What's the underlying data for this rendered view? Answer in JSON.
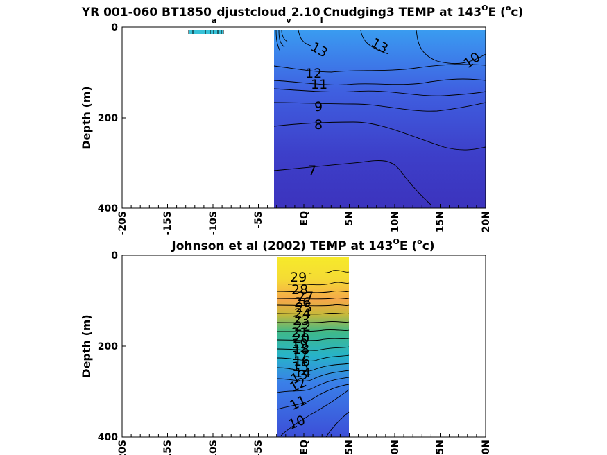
{
  "chart_data": [
    {
      "type": "heatmap",
      "title": {
        "p1": "YR 001-060 BT1850",
        "s1": "a",
        "p2": "djustcloud",
        "s2": "v",
        "p3": "2.10",
        "s3": "I",
        "p4": "Cnudging3 TEMP at 143",
        "sup1": "O",
        "p5": "E (",
        "sup2": "o",
        "p6": "c)"
      },
      "ylabel": "Depth (m)",
      "xlabel": "",
      "xlim": [
        -20,
        20
      ],
      "ylim": [
        0,
        400
      ],
      "y_reversed": true,
      "x_ticklabels": [
        "-20S",
        "-15S",
        "-10S",
        "-5S",
        "EQ",
        "5N",
        "10N",
        "15N",
        "20N"
      ],
      "y_ticklabels": [
        "0",
        "200",
        "400"
      ],
      "data_extent_lat": [
        -3.5,
        20
      ],
      "contour_labels": [
        "13",
        "13",
        "10",
        "12",
        "11",
        "9",
        "8",
        "7"
      ],
      "colors": {
        "surface": "#3a9cf0",
        "deep": "#3d34c4"
      }
    },
    {
      "type": "heatmap",
      "title": {
        "p1": "Johnson et al (2002) TEMP at 143",
        "sup1": "O",
        "p2": "E (",
        "sup2": "o",
        "p3": "c)"
      },
      "ylabel": "Depth (m)",
      "xlabel": "",
      "xlim": [
        -20,
        20
      ],
      "ylim": [
        0,
        400
      ],
      "y_reversed": true,
      "x_ticklabels": [
        "-20S",
        "-15S",
        "-10S",
        "-5S",
        "EQ",
        "5N",
        "10N",
        "15N",
        "20N"
      ],
      "y_ticklabels": [
        "0",
        "200",
        "400"
      ],
      "data_extent_lat": [
        -2.5,
        5.3
      ],
      "contour_labels": [
        "29",
        "28",
        "27",
        "26",
        "25",
        "24",
        "23",
        "22",
        "21",
        "20",
        "19",
        "18",
        "17",
        "16",
        "15",
        "14",
        "13",
        "12",
        "11",
        "10"
      ],
      "colors": {
        "surface": "#f7e62a",
        "warm": "#f5a74a",
        "mid": "#3fb98a",
        "cool": "#2ab0d4",
        "deep": "#3c5ae0"
      }
    }
  ]
}
